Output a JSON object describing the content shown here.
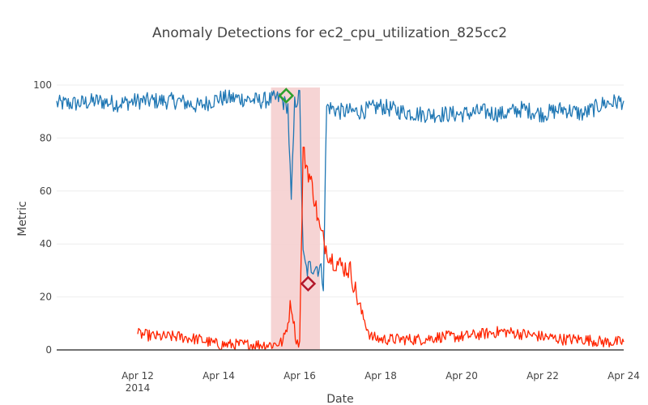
{
  "chart_data": {
    "type": "line",
    "title": "Anomaly Detections for ec2_cpu_utilization_825cc2",
    "xlabel": "Date",
    "ylabel": "Metric",
    "xlim": [
      "2014-04-10T00:00",
      "2014-04-24T00:00"
    ],
    "ylim": [
      0,
      100
    ],
    "grid": true,
    "legend": "none",
    "x_ticks": [
      {
        "date": "2014-04-12",
        "label": "Apr 12",
        "sublabel": "2014"
      },
      {
        "date": "2014-04-14",
        "label": "Apr 14",
        "sublabel": ""
      },
      {
        "date": "2014-04-16",
        "label": "Apr 16",
        "sublabel": ""
      },
      {
        "date": "2014-04-18",
        "label": "Apr 18",
        "sublabel": ""
      },
      {
        "date": "2014-04-20",
        "label": "Apr 20",
        "sublabel": ""
      },
      {
        "date": "2014-04-22",
        "label": "Apr 22",
        "sublabel": ""
      },
      {
        "date": "2014-04-24",
        "label": "Apr 24",
        "sublabel": ""
      }
    ],
    "y_ticks": [
      0,
      20,
      40,
      60,
      80,
      100
    ],
    "highlight_region": {
      "start": "2014-04-15T07:00",
      "end": "2014-04-16T12:00",
      "color": "#f4cccc"
    },
    "series": [
      {
        "color": "#1f77b4",
        "x": [
          "2014-04-10T00:00",
          "2014-04-10T12:00",
          "2014-04-11T00:00",
          "2014-04-11T12:00",
          "2014-04-12T00:00",
          "2014-04-12T12:00",
          "2014-04-13T00:00",
          "2014-04-13T12:00",
          "2014-04-14T00:00",
          "2014-04-14T12:00",
          "2014-04-15T00:00",
          "2014-04-15T12:00",
          "2014-04-15T15:00",
          "2014-04-15T17:00",
          "2014-04-15T19:00",
          "2014-04-15T21:00",
          "2014-04-16T00:00",
          "2014-04-16T02:00",
          "2014-04-16T04:00",
          "2014-04-16T08:00",
          "2014-04-16T12:00",
          "2014-04-16T14:00",
          "2014-04-16T16:00",
          "2014-04-17T00:00",
          "2014-04-17T12:00",
          "2014-04-18T00:00",
          "2014-04-18T12:00",
          "2014-04-19T00:00",
          "2014-04-19T12:00",
          "2014-04-20T00:00",
          "2014-04-20T12:00",
          "2014-04-21T00:00",
          "2014-04-21T12:00",
          "2014-04-22T00:00",
          "2014-04-22T12:00",
          "2014-04-23T00:00",
          "2014-04-23T12:00",
          "2014-04-24T00:00"
        ],
        "y": [
          93,
          93,
          94,
          93,
          94,
          94,
          94,
          92,
          95,
          95,
          94,
          95,
          93,
          92,
          55,
          93,
          96,
          35,
          30,
          32,
          31,
          26,
          92,
          90,
          90,
          92,
          90,
          89,
          89,
          89,
          90,
          89,
          91,
          89,
          91,
          89,
          93,
          94
        ]
      },
      {
        "color": "#ff2400",
        "x": [
          "2014-04-12T00:00",
          "2014-04-12T12:00",
          "2014-04-13T00:00",
          "2014-04-13T12:00",
          "2014-04-14T00:00",
          "2014-04-14T12:00",
          "2014-04-15T00:00",
          "2014-04-15T08:00",
          "2014-04-15T14:00",
          "2014-04-15T17:00",
          "2014-04-15T19:00",
          "2014-04-15T22:00",
          "2014-04-16T00:00",
          "2014-04-16T02:00",
          "2014-04-16T04:00",
          "2014-04-16T08:00",
          "2014-04-16T12:00",
          "2014-04-16T18:00",
          "2014-04-17T00:00",
          "2014-04-17T06:00",
          "2014-04-17T12:00",
          "2014-04-17T18:00",
          "2014-04-18T00:00",
          "2014-04-18T12:00",
          "2014-04-19T00:00",
          "2014-04-19T12:00",
          "2014-04-20T00:00",
          "2014-04-20T12:00",
          "2014-04-21T00:00",
          "2014-04-21T12:00",
          "2014-04-22T00:00",
          "2014-04-22T12:00",
          "2014-04-23T00:00",
          "2014-04-23T12:00",
          "2014-04-24T00:00"
        ],
        "y": [
          6,
          5,
          5,
          4,
          2,
          2,
          2,
          2,
          3,
          10,
          18,
          3,
          3,
          75,
          70,
          60,
          45,
          35,
          32,
          30,
          15,
          5,
          4,
          4,
          4,
          5,
          5,
          6,
          7,
          6,
          5,
          4,
          4,
          3,
          3
        ]
      }
    ],
    "markers": [
      {
        "x": "2014-04-15T16:00",
        "y": 96,
        "shape": "diamond",
        "color": "#2ca02c"
      },
      {
        "x": "2014-04-16T05:00",
        "y": 25,
        "shape": "diamond",
        "color": "#b2182b"
      }
    ]
  }
}
